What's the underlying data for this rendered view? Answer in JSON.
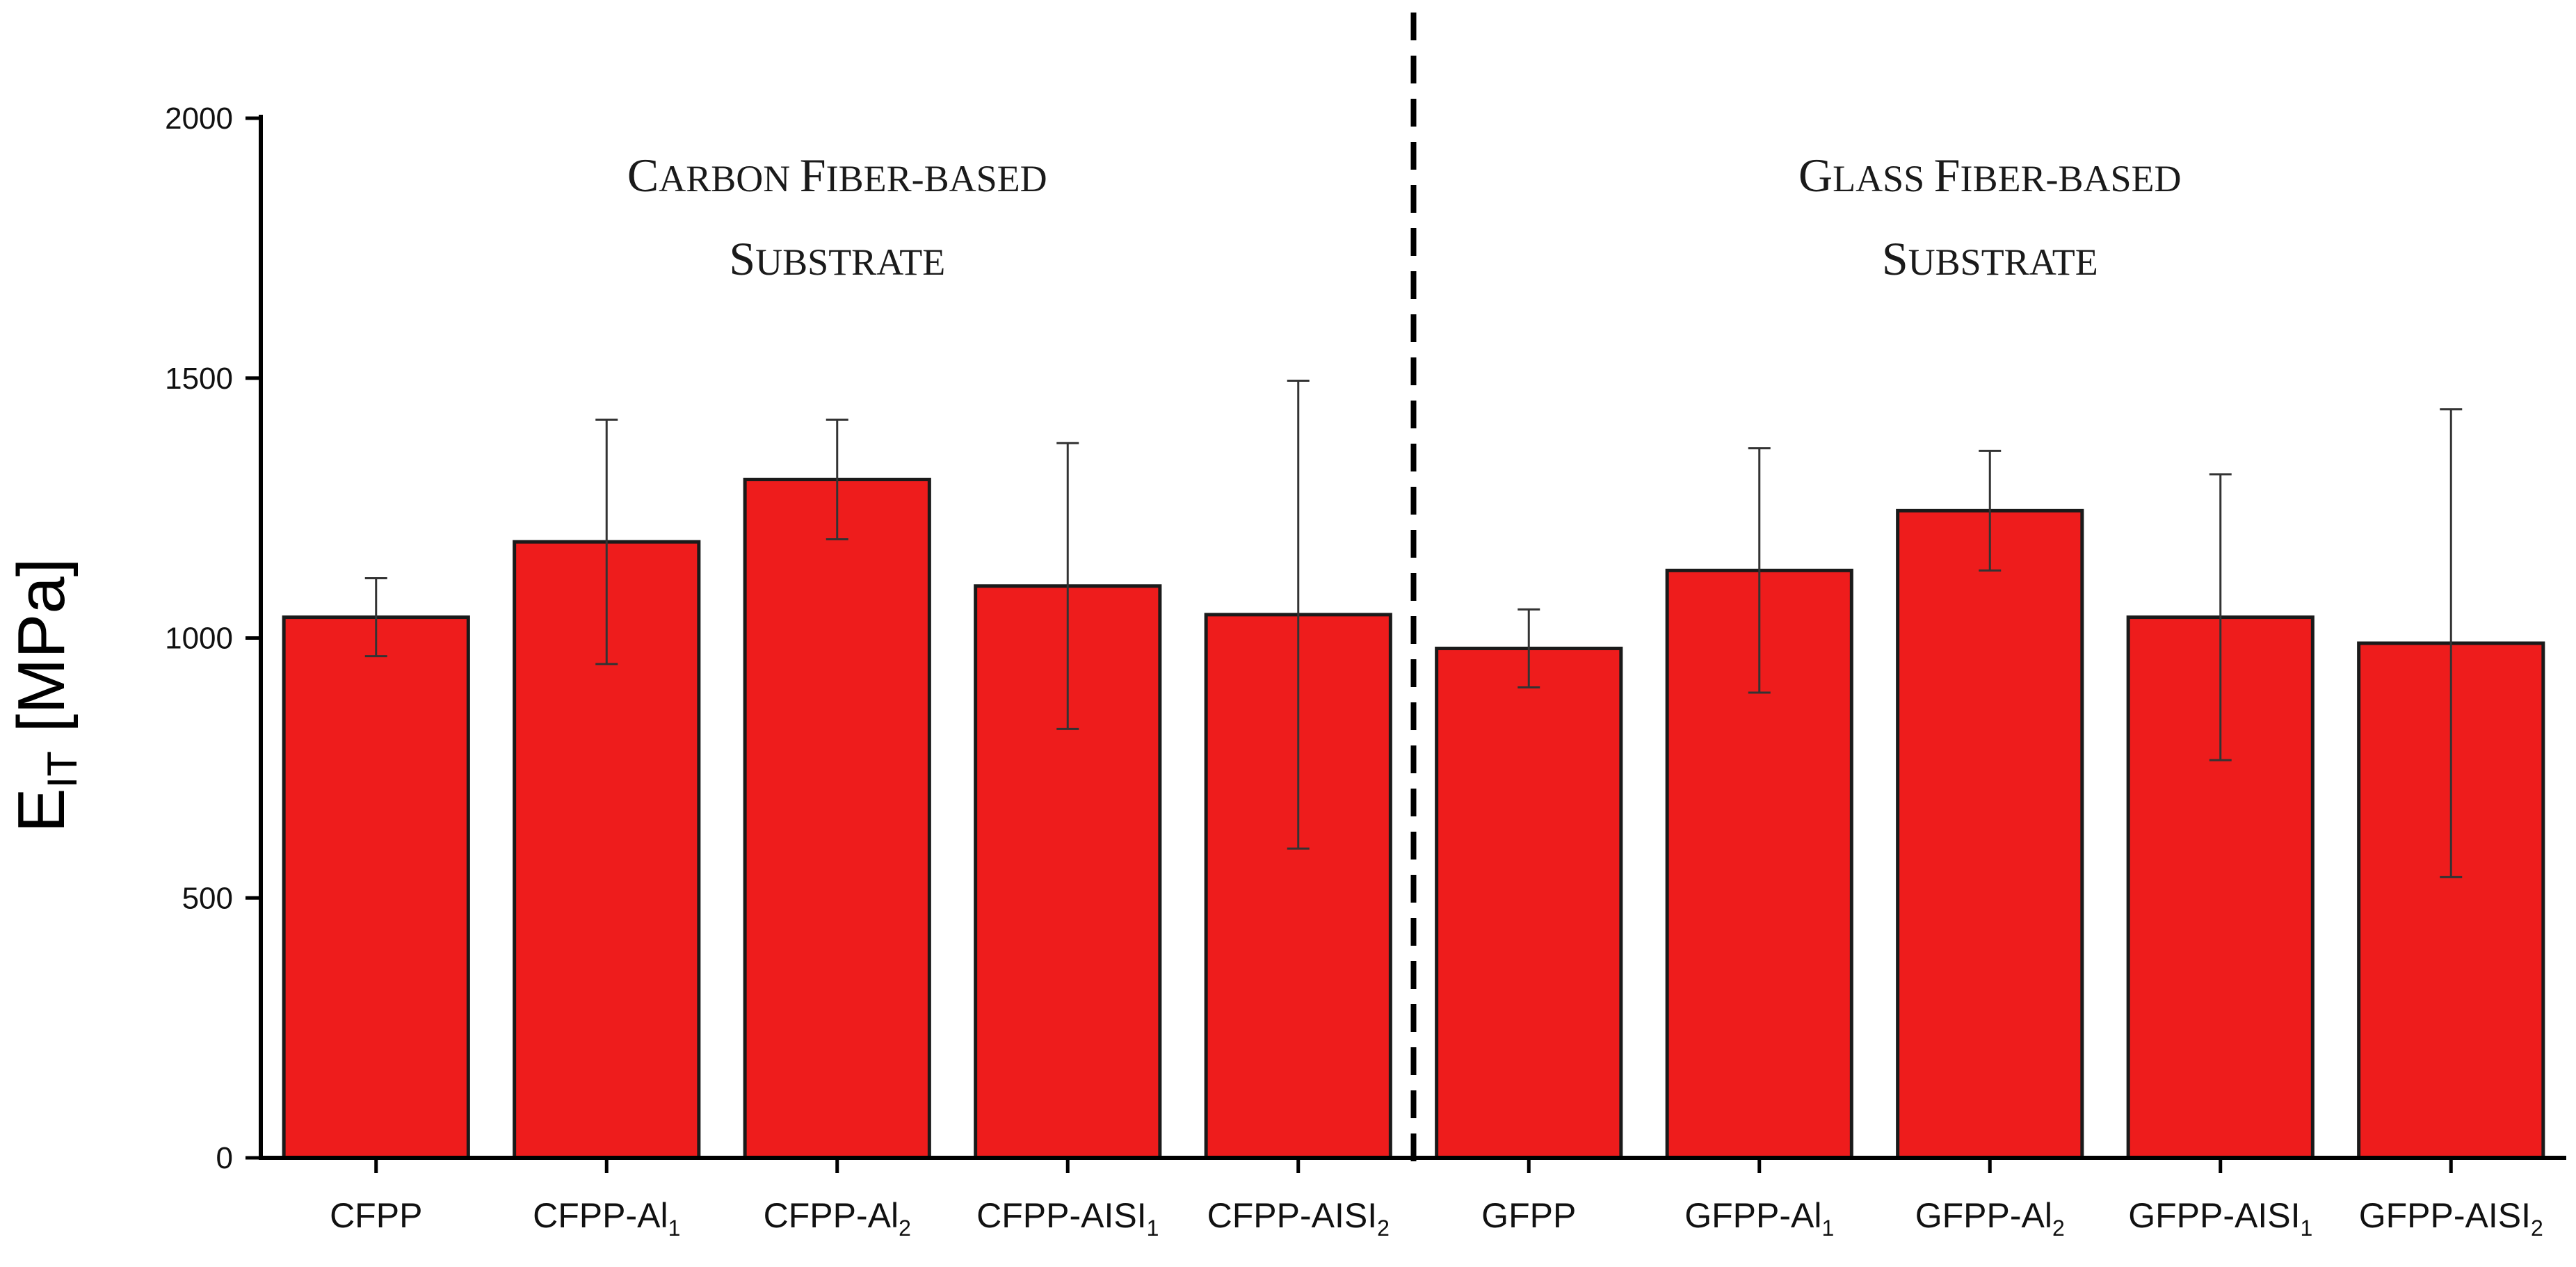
{
  "chart_data": {
    "type": "bar",
    "title": "",
    "xlabel": "",
    "ylabel": "E_IT [MPa]",
    "ylabel_main": "E",
    "ylabel_sub": "IT",
    "ylabel_units": " [MPa]",
    "ylim": [
      0,
      2000
    ],
    "yticks": [
      0,
      500,
      1000,
      1500,
      2000
    ],
    "grid": false,
    "bar_color": "#ee1c1c",
    "categories": [
      {
        "base": "CFPP",
        "sub": "",
        "name": "CFPP"
      },
      {
        "base": "CFPP-Al",
        "sub": "1",
        "name": "CFPP-Al1"
      },
      {
        "base": "CFPP-Al",
        "sub": "2",
        "name": "CFPP-Al2"
      },
      {
        "base": "CFPP-AISI",
        "sub": "1",
        "name": "CFPP-AISI1"
      },
      {
        "base": "CFPP-AISI",
        "sub": "2",
        "name": "CFPP-AISI2"
      },
      {
        "base": "GFPP",
        "sub": "",
        "name": "GFPP"
      },
      {
        "base": "GFPP-Al",
        "sub": "1",
        "name": "GFPP-Al1"
      },
      {
        "base": "GFPP-Al",
        "sub": "2",
        "name": "GFPP-Al2"
      },
      {
        "base": "GFPP-AISI",
        "sub": "1",
        "name": "GFPP-AISI1"
      },
      {
        "base": "GFPP-AISI",
        "sub": "2",
        "name": "GFPP-AISI2"
      }
    ],
    "values": [
      1040,
      1185,
      1305,
      1100,
      1045,
      980,
      1130,
      1245,
      1040,
      990
    ],
    "errors": [
      75,
      235,
      115,
      275,
      450,
      75,
      235,
      115,
      275,
      450
    ],
    "divider_after_index": 4,
    "groups": [
      {
        "line1": [
          "C",
          "ARBON ",
          "F",
          "IBER-BASED"
        ],
        "line2": [
          "S",
          "UBSTRATE"
        ],
        "from": 0,
        "to": 4
      },
      {
        "line1": [
          "G",
          "LASS ",
          "F",
          "IBER-BASED"
        ],
        "line2": [
          "S",
          "UBSTRATE"
        ],
        "from": 5,
        "to": 9
      }
    ]
  }
}
